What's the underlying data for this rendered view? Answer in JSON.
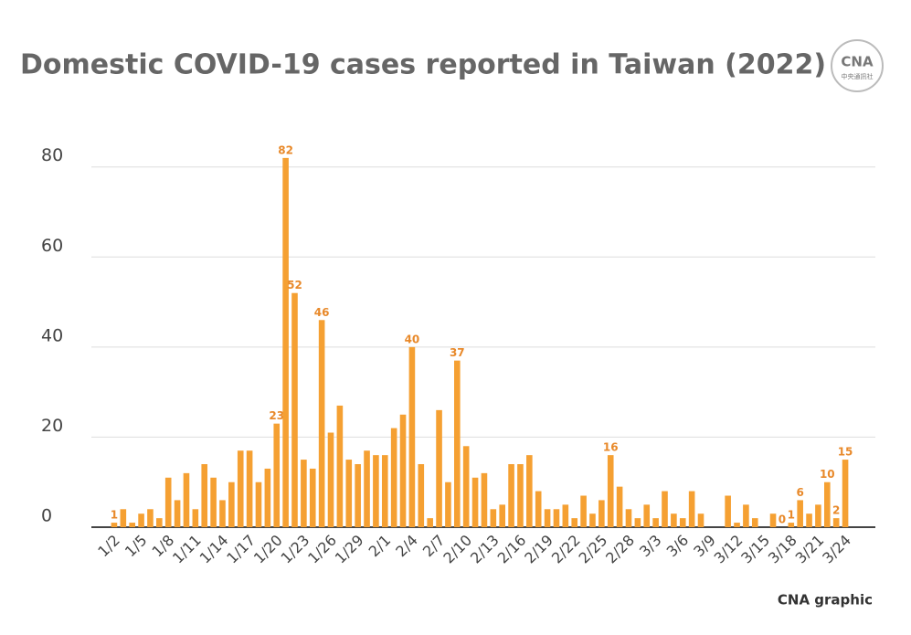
{
  "chart_data": {
    "type": "bar",
    "title": "Domestic COVID-19 cases reported in Taiwan (2022)",
    "source": "CNA graphic",
    "categories": [
      "1/2",
      null,
      null,
      "1/5",
      null,
      null,
      "1/8",
      null,
      null,
      "1/11",
      null,
      null,
      "1/14",
      null,
      null,
      "1/17",
      null,
      null,
      "1/20",
      null,
      null,
      "1/23",
      null,
      null,
      "1/26",
      null,
      null,
      "1/29",
      null,
      null,
      "2/1",
      null,
      null,
      "2/4",
      null,
      null,
      "2/7",
      null,
      null,
      "2/10",
      null,
      null,
      "2/13",
      null,
      null,
      "2/16",
      null,
      null,
      "2/19",
      null,
      null,
      "2/22",
      null,
      null,
      "2/25",
      null,
      null,
      "2/28",
      null,
      null,
      "3/3",
      null,
      null,
      "3/6",
      null,
      null,
      "3/9",
      null,
      null,
      "3/12",
      null,
      null,
      "3/15",
      null,
      null,
      "3/18",
      null,
      null,
      "3/21",
      null,
      null,
      "3/24"
    ],
    "values": [
      1,
      4,
      1,
      3,
      4,
      2,
      11,
      6,
      12,
      4,
      14,
      11,
      6,
      10,
      17,
      17,
      10,
      13,
      23,
      82,
      52,
      15,
      13,
      46,
      21,
      27,
      15,
      14,
      17,
      16,
      16,
      22,
      25,
      40,
      14,
      2,
      26,
      10,
      37,
      18,
      11,
      12,
      4,
      5,
      14,
      14,
      16,
      8,
      4,
      4,
      5,
      2,
      7,
      3,
      6,
      16,
      9,
      4,
      2,
      5,
      2,
      8,
      3,
      2,
      8,
      3,
      0,
      0,
      7,
      1,
      5,
      2,
      0,
      3,
      0,
      1,
      6,
      3,
      5,
      10,
      2,
      15
    ],
    "value_labels": [
      "1",
      null,
      null,
      null,
      null,
      null,
      null,
      null,
      null,
      null,
      null,
      null,
      null,
      null,
      null,
      null,
      null,
      null,
      "23",
      "82",
      "52",
      null,
      null,
      "46",
      null,
      null,
      null,
      null,
      null,
      null,
      null,
      null,
      null,
      "40",
      null,
      null,
      null,
      null,
      "37",
      null,
      null,
      null,
      null,
      null,
      null,
      null,
      null,
      null,
      null,
      null,
      null,
      null,
      null,
      null,
      null,
      "16",
      null,
      null,
      null,
      null,
      null,
      null,
      null,
      null,
      null,
      null,
      null,
      null,
      null,
      null,
      null,
      null,
      null,
      null,
      "0",
      "1",
      "6",
      null,
      null,
      "10",
      "2",
      "15"
    ],
    "color": "#f5a032",
    "ylim": [
      0,
      84
    ],
    "yticks": [
      0,
      20,
      40,
      60,
      80
    ],
    "grid": true
  }
}
